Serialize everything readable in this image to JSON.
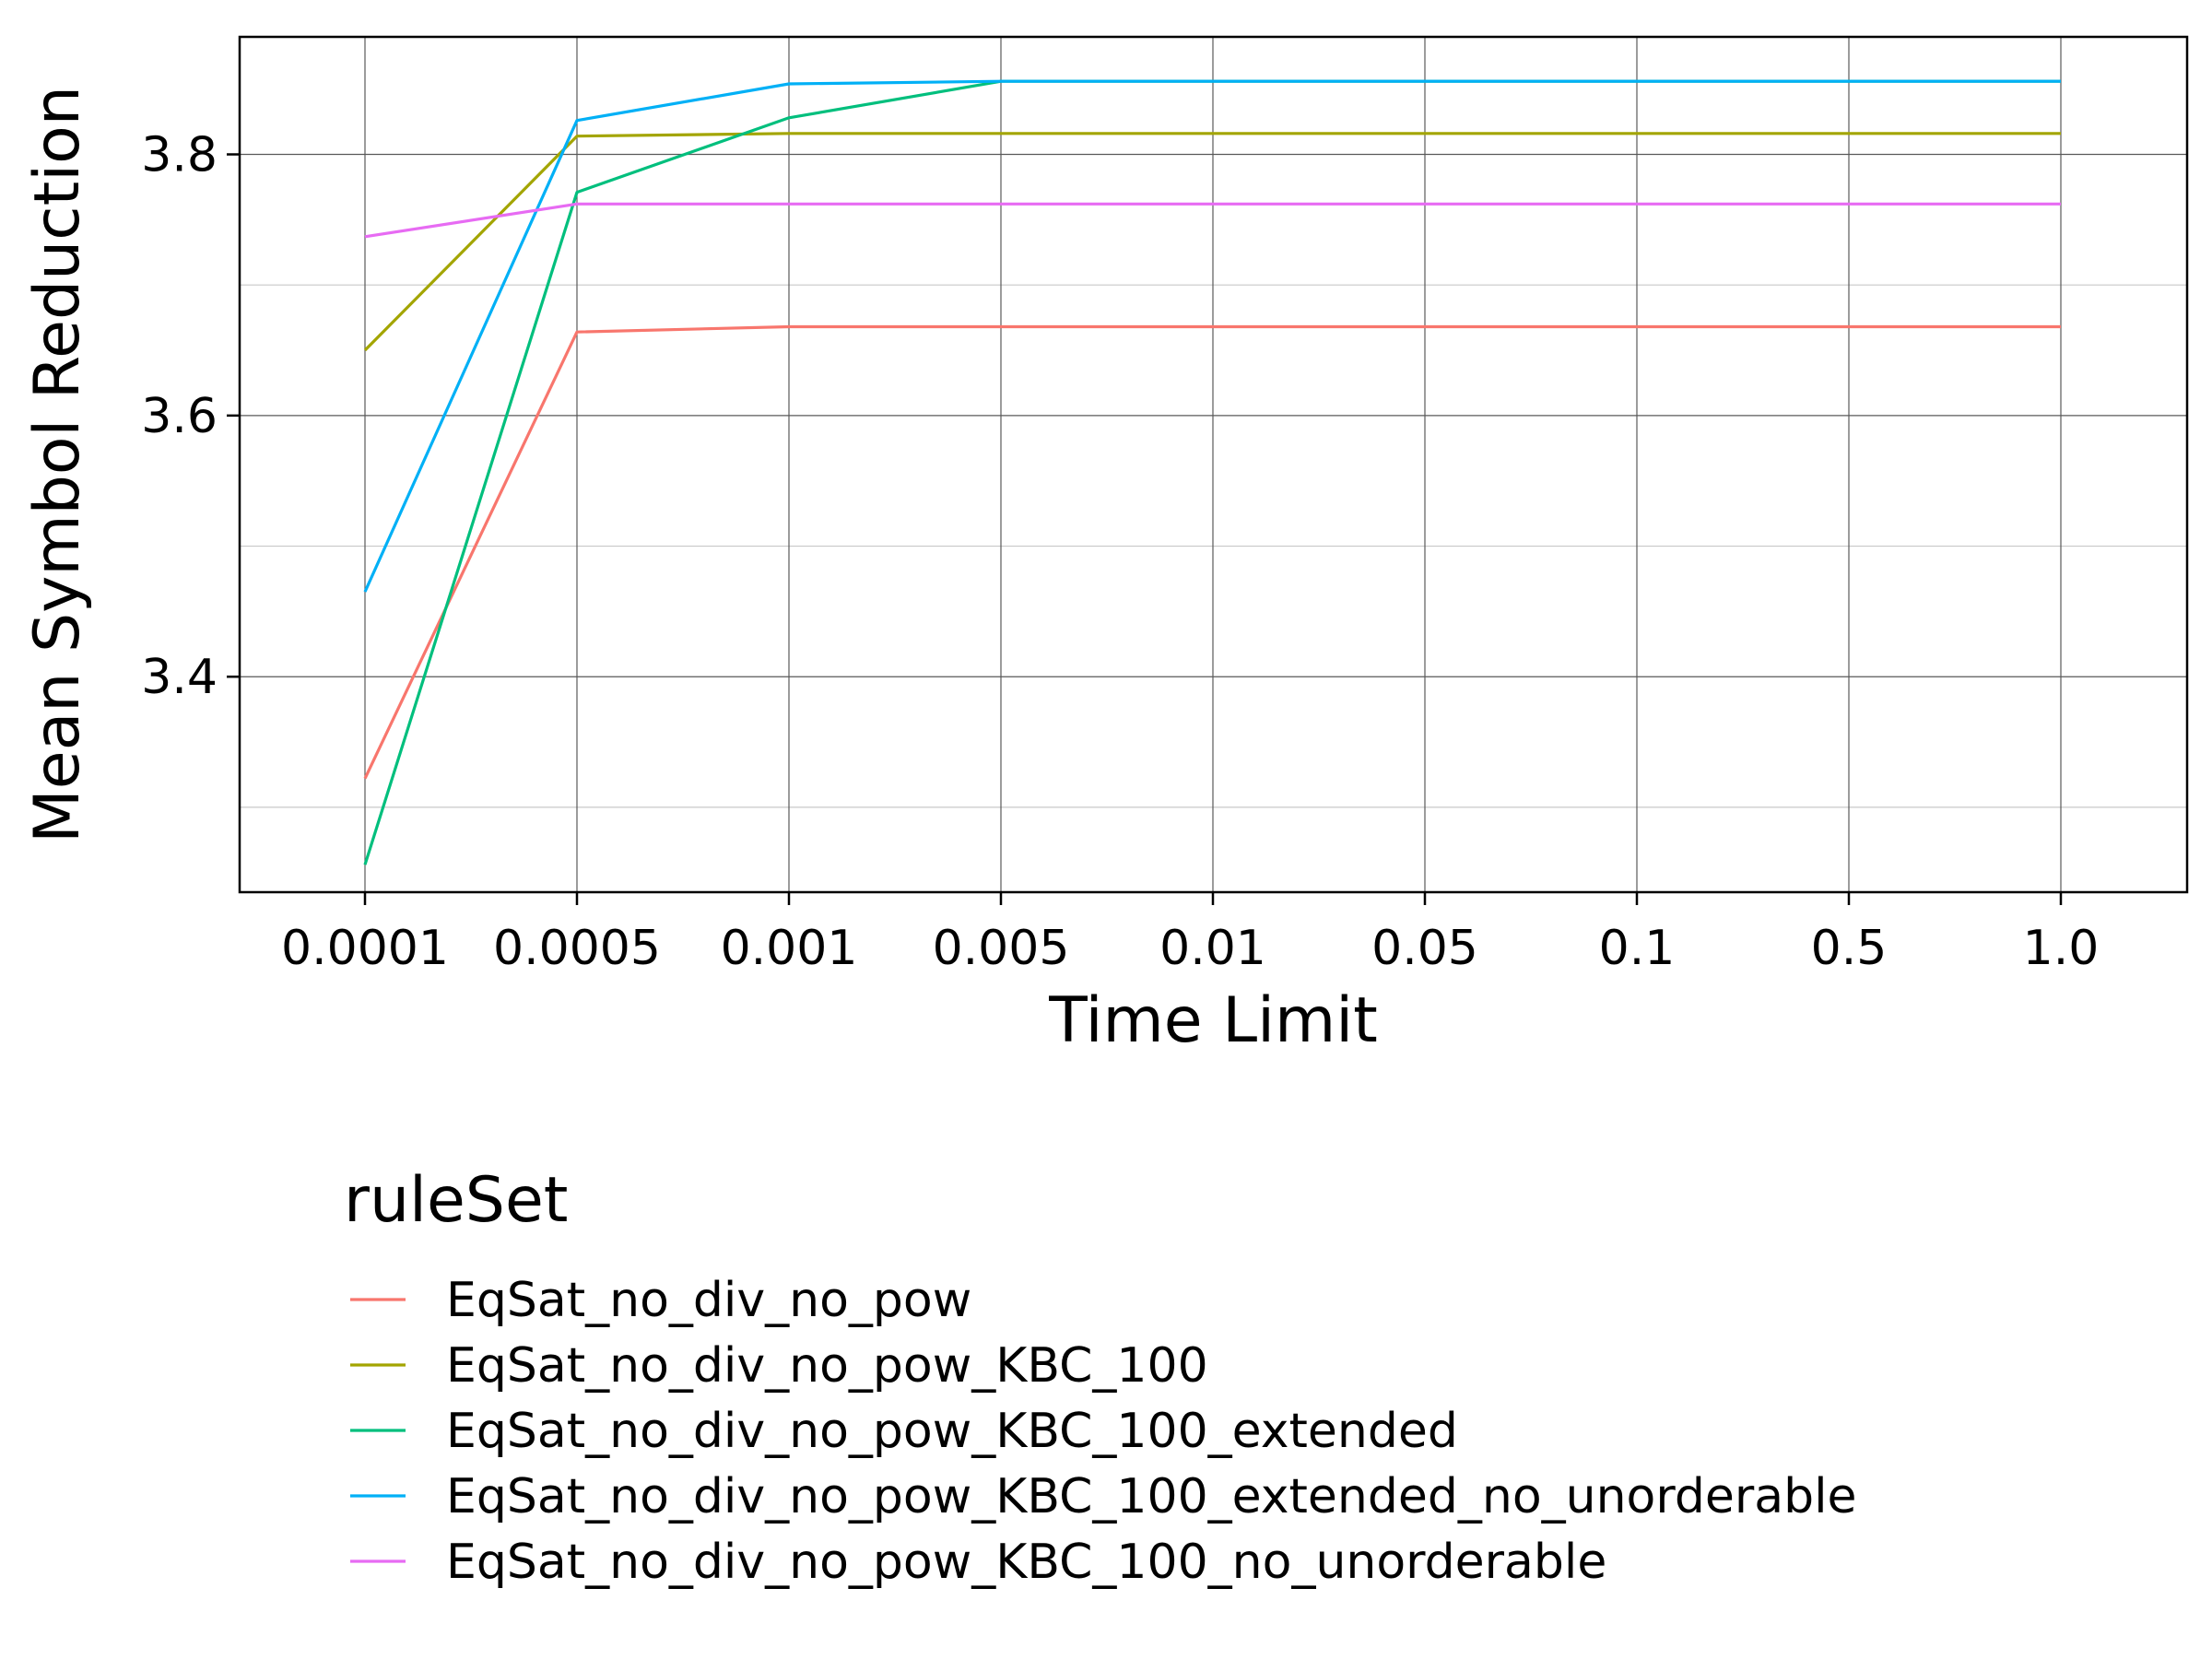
{
  "chart_data": {
    "type": "line",
    "xlabel": "Time Limit",
    "ylabel": "Mean Symbol Reduction",
    "x_scale": "categorical",
    "categories": [
      "0.0001",
      "0.0005",
      "0.001",
      "0.005",
      "0.01",
      "0.05",
      "0.1",
      "0.5",
      "1.0"
    ],
    "ylim": [
      3.235,
      3.89
    ],
    "y_ticks": [
      3.4,
      3.6,
      3.8
    ],
    "y_tick_labels": [
      "3.4",
      "3.6",
      "3.8"
    ],
    "y_minor_gridlines": [
      3.3,
      3.5,
      3.7
    ],
    "grid": true,
    "legend": {
      "title": "ruleSet",
      "placement": "bottom"
    },
    "series": [
      {
        "name": "EqSat_no_div_no_pow",
        "color": "#F8766D",
        "values": [
          3.322,
          3.664,
          3.668,
          3.668,
          3.668,
          3.668,
          3.668,
          3.668,
          3.668
        ]
      },
      {
        "name": "EqSat_no_div_no_pow_KBC_100",
        "color": "#A3A500",
        "values": [
          3.65,
          3.814,
          3.816,
          3.816,
          3.816,
          3.816,
          3.816,
          3.816,
          3.816
        ]
      },
      {
        "name": "EqSat_no_div_no_pow_KBC_100_extended",
        "color": "#00BF7D",
        "values": [
          3.256,
          3.771,
          3.828,
          3.856,
          3.856,
          3.856,
          3.856,
          3.856,
          3.856
        ]
      },
      {
        "name": "EqSat_no_div_no_pow_KBC_100_extended_no_unorderable",
        "color": "#00B0F6",
        "values": [
          3.465,
          3.826,
          3.854,
          3.856,
          3.856,
          3.856,
          3.856,
          3.856,
          3.856
        ]
      },
      {
        "name": "EqSat_no_div_no_pow_KBC_100_no_unorderable",
        "color": "#E76BF3",
        "values": [
          3.737,
          3.762,
          3.762,
          3.762,
          3.762,
          3.762,
          3.762,
          3.762,
          3.762
        ]
      }
    ]
  }
}
